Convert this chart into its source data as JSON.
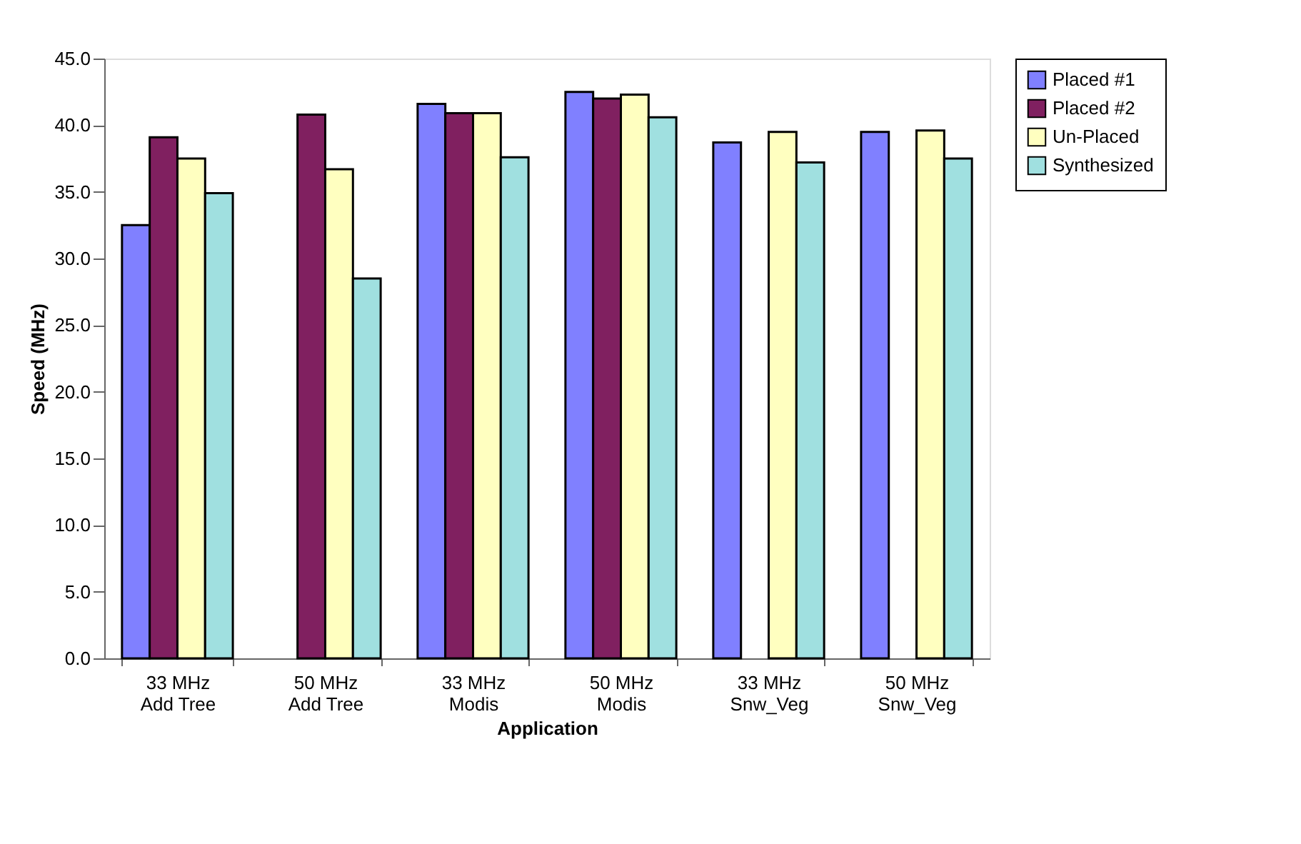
{
  "chart_data": {
    "type": "bar",
    "xlabel": "Application",
    "ylabel": "Speed (MHz)",
    "categories": [
      "33 MHz\nAdd Tree",
      "50 MHz\nAdd Tree",
      "33 MHz\nModis",
      "50 MHz\nModis",
      "33 MHz\nSnw_Veg",
      "50 MHz\nSnw_Veg"
    ],
    "series": [
      {
        "name": "Placed #1",
        "color": "#8080ff",
        "values": [
          32.5,
          null,
          41.6,
          42.5,
          38.7,
          39.5
        ]
      },
      {
        "name": "Placed #2",
        "color": "#802060",
        "values": [
          39.1,
          40.8,
          40.9,
          42.0,
          null,
          null
        ]
      },
      {
        "name": "Un-Placed",
        "color": "#ffffc0",
        "values": [
          37.5,
          36.7,
          40.9,
          42.3,
          39.5,
          39.6
        ]
      },
      {
        "name": "Synthesized",
        "color": "#a0e0e0",
        "values": [
          34.9,
          28.5,
          37.6,
          40.6,
          37.2,
          37.5
        ]
      }
    ],
    "ylim": [
      0,
      45
    ],
    "yticks": [
      {
        "value": 0,
        "label": "0.0"
      },
      {
        "value": 5,
        "label": "5.0"
      },
      {
        "value": 10,
        "label": "10.0"
      },
      {
        "value": 15,
        "label": "15.0"
      },
      {
        "value": 20,
        "label": "20.0"
      },
      {
        "value": 25,
        "label": "25.0"
      },
      {
        "value": 30,
        "label": "30.0"
      },
      {
        "value": 35,
        "label": "35.0"
      },
      {
        "value": 40,
        "label": "40.0"
      },
      {
        "value": 45,
        "label": "45.0"
      }
    ],
    "grid": false,
    "legend": "right"
  }
}
